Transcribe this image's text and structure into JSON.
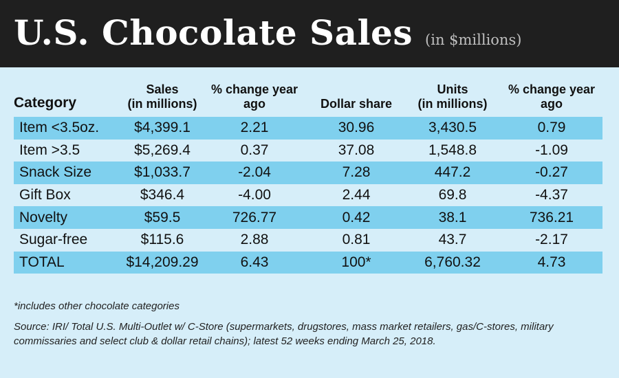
{
  "header": {
    "title": "U.S. Chocolate Sales",
    "subtitle": "(in $millions)"
  },
  "table": {
    "columns": [
      "Category",
      "Sales\n(in millions)",
      "% change year\nago",
      "Dollar share",
      "Units\n(in millions)",
      "% change year\nago"
    ],
    "rows": [
      [
        "Item <3.5oz.",
        "$4,399.1",
        "2.21",
        "30.96",
        "3,430.5",
        "0.79"
      ],
      [
        "Item >3.5",
        "$5,269.4",
        "0.37",
        "37.08",
        "1,548.8",
        "-1.09"
      ],
      [
        "Snack Size",
        "$1,033.7",
        "-2.04",
        "7.28",
        "447.2",
        "-0.27"
      ],
      [
        "Gift Box",
        "$346.4",
        "-4.00",
        "2.44",
        "69.8",
        "-4.37"
      ],
      [
        "Novelty",
        "$59.5",
        "726.77",
        "0.42",
        "38.1",
        "736.21"
      ],
      [
        "Sugar-free",
        "$115.6",
        "2.88",
        "0.81",
        "43.7",
        "-2.17"
      ],
      [
        "TOTAL",
        "$14,209.29",
        "6.43",
        "100*",
        "6,760.32",
        "4.73"
      ]
    ]
  },
  "footnotes": {
    "note": "*includes other chocolate categories",
    "source": "Source: IRI/ Total U.S. Multi-Outlet w/ C-Store (supermarkets, drugstores, mass market retailers, gas/C-stores, military commissaries and select club & dollar retail chains); latest 52 weeks ending March 25, 2018."
  },
  "colors": {
    "background": "#d6eef9",
    "banner": "#1f1f1f",
    "row_highlight": "#7fd0ee"
  }
}
